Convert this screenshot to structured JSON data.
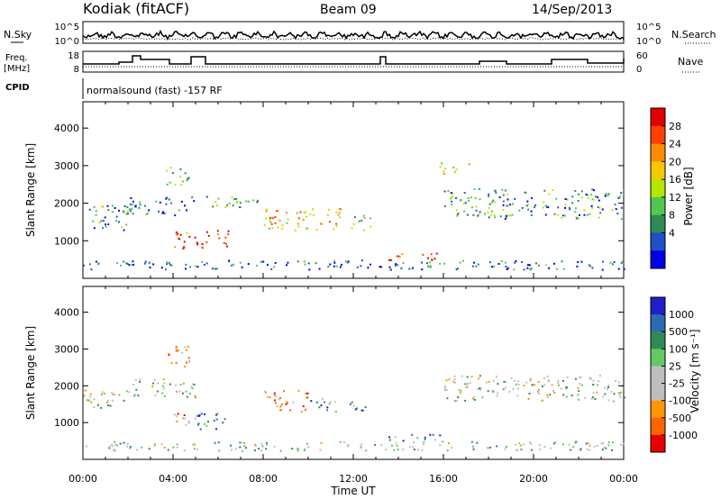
{
  "header": {
    "station": "Kodiak (fitACF)",
    "beam": "Beam 09",
    "date": "14/Sep/2013"
  },
  "top_panels": {
    "nsky_label": "N.Sky",
    "nsearch_label": "N.Search",
    "noise_ticks_left": [
      "10^5",
      "10^0"
    ],
    "noise_ticks_right": [
      "10^5",
      "10^0"
    ],
    "freq_label_line1": "Freq.",
    "freq_label_line2": "[MHz]",
    "freq_ticks": [
      "18",
      "8"
    ],
    "nave_label": "Nave",
    "nave_ticks": [
      "60",
      "0"
    ],
    "cpid_label": "CPID",
    "cpid_text": "normalsound (fast) -157 RF"
  },
  "chart_data": [
    {
      "type": "heatmap",
      "name": "power-panel",
      "ylabel": "Slant Range [km]",
      "yticks": [
        "1000",
        "2000",
        "3000",
        "4000"
      ],
      "ylim": [
        0,
        4700
      ],
      "xlim": [
        0,
        24
      ],
      "colorbar": {
        "label": "Power [dB]",
        "ticks": [
          "28",
          "24",
          "20",
          "16",
          "12",
          "8",
          "4"
        ],
        "colors": [
          "#e00000",
          "#ff4000",
          "#ff8c00",
          "#f5c800",
          "#b4e600",
          "#50c850",
          "#2e8b57",
          "#2050c8",
          "#0000e6"
        ]
      },
      "regions": [
        {
          "t0": 0.0,
          "t1": 2.0,
          "r0": 1300,
          "r1": 2000,
          "level": 0.3
        },
        {
          "t0": 2.0,
          "t1": 4.8,
          "r0": 1700,
          "r1": 2200,
          "level": 0.2
        },
        {
          "t0": 3.5,
          "t1": 4.7,
          "r0": 2500,
          "r1": 3000,
          "level": 0.4
        },
        {
          "t0": 4.0,
          "t1": 6.5,
          "r0": 800,
          "r1": 1300,
          "level": 0.9
        },
        {
          "t0": 4.8,
          "t1": 8.0,
          "r0": 1900,
          "r1": 2200,
          "level": 0.35
        },
        {
          "t0": 8.0,
          "t1": 11.5,
          "r0": 1300,
          "r1": 1900,
          "level": 0.6
        },
        {
          "t0": 11.8,
          "t1": 12.8,
          "r0": 1300,
          "r1": 1700,
          "level": 0.5
        },
        {
          "t0": 13.5,
          "t1": 16.0,
          "r0": 500,
          "r1": 700,
          "level": 0.85
        },
        {
          "t0": 15.8,
          "t1": 17.2,
          "r0": 2800,
          "r1": 3100,
          "level": 0.6
        },
        {
          "t0": 16.0,
          "t1": 24.0,
          "r0": 1600,
          "r1": 2400,
          "level": 0.3
        },
        {
          "t0": 0.0,
          "t1": 24.0,
          "r0": 250,
          "r1": 500,
          "level": 0.2
        }
      ]
    },
    {
      "type": "heatmap",
      "name": "velocity-panel",
      "ylabel": "Slant Range [km]",
      "yticks": [
        "1000",
        "2000",
        "3000",
        "4000"
      ],
      "ylim": [
        0,
        4700
      ],
      "xlim": [
        0,
        24
      ],
      "xticks": [
        "00:00",
        "04:00",
        "08:00",
        "12:00",
        "16:00",
        "20:00",
        "00:00"
      ],
      "xlabel": "Time UT",
      "colorbar": {
        "label": "Velocity [m s⁻¹]",
        "ticks": [
          "1000",
          "500",
          "100",
          "25",
          "-25",
          "-100",
          "-500",
          "-1000"
        ],
        "colors": [
          "#2020c8",
          "#2e6ab4",
          "#2e8b57",
          "#64c864",
          "#bebebe",
          "#bebebe",
          "#ff9600",
          "#ff6400",
          "#e60000"
        ]
      },
      "regions": [
        {
          "t0": 0.0,
          "t1": 2.0,
          "r0": 1400,
          "r1": 1900,
          "level": 0.5
        },
        {
          "t0": 2.0,
          "t1": 5.0,
          "r0": 1700,
          "r1": 2200,
          "level": 0.5
        },
        {
          "t0": 3.5,
          "t1": 4.7,
          "r0": 2500,
          "r1": 3100,
          "level": 0.3
        },
        {
          "t0": 4.0,
          "t1": 5.2,
          "r0": 900,
          "r1": 1300,
          "level": 0.25
        },
        {
          "t0": 5.0,
          "t1": 6.4,
          "r0": 800,
          "r1": 1300,
          "level": 0.8
        },
        {
          "t0": 8.0,
          "t1": 10.0,
          "r0": 1300,
          "r1": 1900,
          "level": 0.15
        },
        {
          "t0": 10.0,
          "t1": 11.2,
          "r0": 1300,
          "r1": 1700,
          "level": 0.75
        },
        {
          "t0": 11.8,
          "t1": 12.8,
          "r0": 1300,
          "r1": 1600,
          "level": 0.75
        },
        {
          "t0": 13.5,
          "t1": 16.0,
          "r0": 500,
          "r1": 700,
          "level": 0.7
        },
        {
          "t0": 16.0,
          "t1": 24.0,
          "r0": 1600,
          "r1": 2300,
          "level": 0.5
        },
        {
          "t0": 0.0,
          "t1": 24.0,
          "r0": 250,
          "r1": 500,
          "level": 0.55
        }
      ]
    }
  ]
}
